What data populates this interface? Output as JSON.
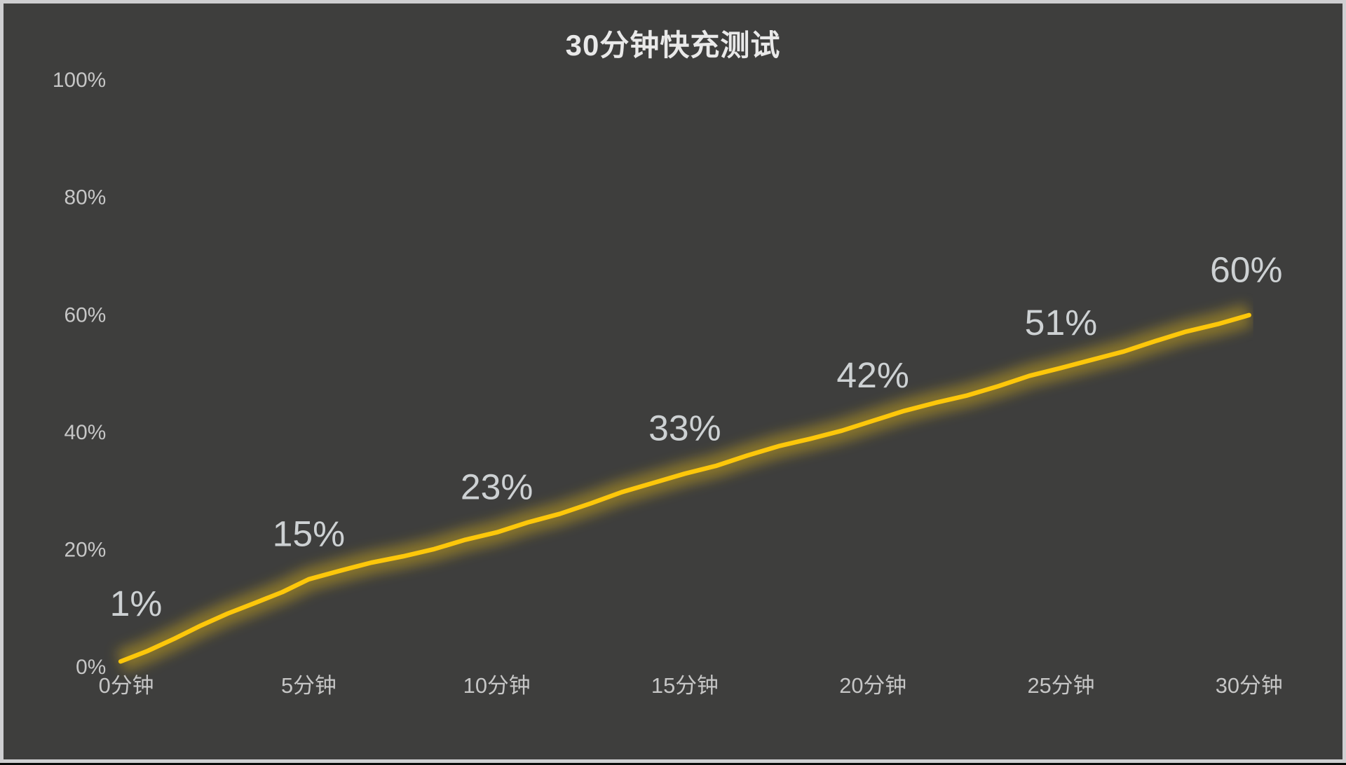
{
  "chart_data": {
    "type": "line",
    "title": "30分钟快充测试",
    "x": [
      0,
      5,
      10,
      15,
      20,
      25,
      30
    ],
    "x_labels": [
      "0分钟",
      "5分钟",
      "10分钟",
      "15分钟",
      "20分钟",
      "25分钟",
      "30分钟"
    ],
    "values": [
      1,
      15,
      23,
      33,
      42,
      51,
      60
    ],
    "data_labels": [
      "1%",
      "15%",
      "23%",
      "33%",
      "42%",
      "51%",
      "60%"
    ],
    "y_tick_values": [
      0,
      20,
      40,
      60,
      80,
      100
    ],
    "y_tick_labels": [
      "0%",
      "20%",
      "40%",
      "60%",
      "80%",
      "100%"
    ],
    "ylim": [
      0,
      100
    ],
    "grid": false,
    "legend": "none",
    "xlabel": "",
    "ylabel": ""
  },
  "colors": {
    "background": "#3e3e3d",
    "frame_border": "#cfcfd1",
    "bottom_strip": "#0b0b0b",
    "line": "#fdc70a",
    "glow": "#c9a51c",
    "title_text": "#e9e9e9",
    "tick_text": "#c6c6c6",
    "data_label_text": "#cdd1d3"
  }
}
